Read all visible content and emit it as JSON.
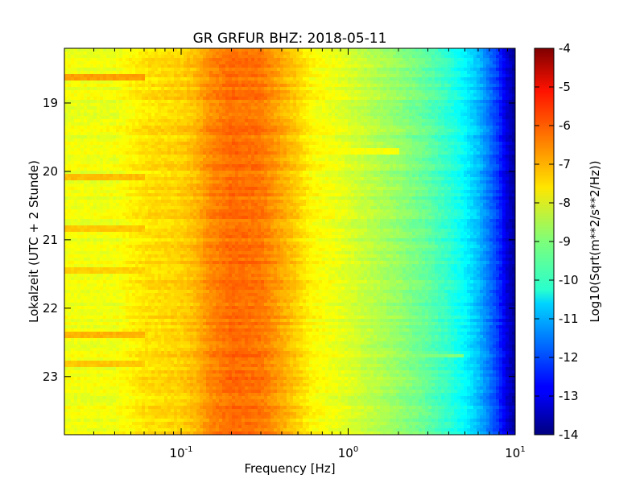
{
  "chart_data": {
    "type": "heatmap",
    "title": "GR GRFUR BHZ: 2018-05-11",
    "xlabel": "Frequency [Hz]",
    "ylabel": "Lokalzeit (UTC + 2 Stunde)",
    "x_scale": "log",
    "xlim": [
      0.02,
      10
    ],
    "x_ticks": [
      {
        "value": 0.1,
        "base": "10",
        "exp": "-1"
      },
      {
        "value": 1,
        "base": "10",
        "exp": "0"
      },
      {
        "value": 10,
        "base": "10",
        "exp": "1"
      }
    ],
    "ylim": [
      18.2,
      23.85
    ],
    "y_inverted": true,
    "y_ticks": [
      {
        "value": 19,
        "label": "19"
      },
      {
        "value": 20,
        "label": "20"
      },
      {
        "value": 21,
        "label": "21"
      },
      {
        "value": 22,
        "label": "22"
      },
      {
        "value": 23,
        "label": "23"
      }
    ],
    "colorbar": {
      "label": "Log10(Sqrt(m**2/s**2/Hz))",
      "range": [
        -14,
        -4
      ],
      "colormap": "jet",
      "ticks": [
        "-4",
        "-5",
        "-6",
        "-7",
        "-8",
        "-9",
        "-10",
        "-11",
        "-12",
        "-13",
        "-14"
      ]
    },
    "spectrum_profile": {
      "frequency_hz": [
        0.02,
        0.04,
        0.06,
        0.1,
        0.12,
        0.15,
        0.2,
        0.3,
        0.4,
        0.5,
        0.6,
        0.8,
        1,
        1.5,
        2,
        3,
        4,
        5,
        6,
        7,
        8,
        9,
        10
      ],
      "log10_psd": [
        -7.9,
        -7.9,
        -7.5,
        -7.3,
        -7.1,
        -6.6,
        -6.3,
        -6.4,
        -6.9,
        -7.3,
        -7.7,
        -7.9,
        -8.1,
        -8.5,
        -8.8,
        -9.3,
        -9.8,
        -10.3,
        -10.9,
        -11.6,
        -12.3,
        -13.2,
        -13.7
      ]
    },
    "events": [
      {
        "time": 18.62,
        "fmin": 0.02,
        "fmax": 0.06,
        "log10_psd": -6.8
      },
      {
        "time": 19.72,
        "fmin": 0.7,
        "fmax": 2.0,
        "log10_psd": -7.8
      },
      {
        "time": 20.1,
        "fmin": 0.02,
        "fmax": 0.06,
        "log10_psd": -7.1
      },
      {
        "time": 20.85,
        "fmin": 0.02,
        "fmax": 0.06,
        "log10_psd": -7.2
      },
      {
        "time": 21.45,
        "fmin": 0.02,
        "fmax": 0.06,
        "log10_psd": -7.3
      },
      {
        "time": 22.4,
        "fmin": 0.02,
        "fmax": 0.06,
        "log10_psd": -7.0
      },
      {
        "time": 22.7,
        "fmin": 1.5,
        "fmax": 5.0,
        "log10_psd": -9.0
      },
      {
        "time": 22.8,
        "fmin": 0.02,
        "fmax": 0.06,
        "log10_psd": -7.2
      }
    ],
    "grid": false
  }
}
